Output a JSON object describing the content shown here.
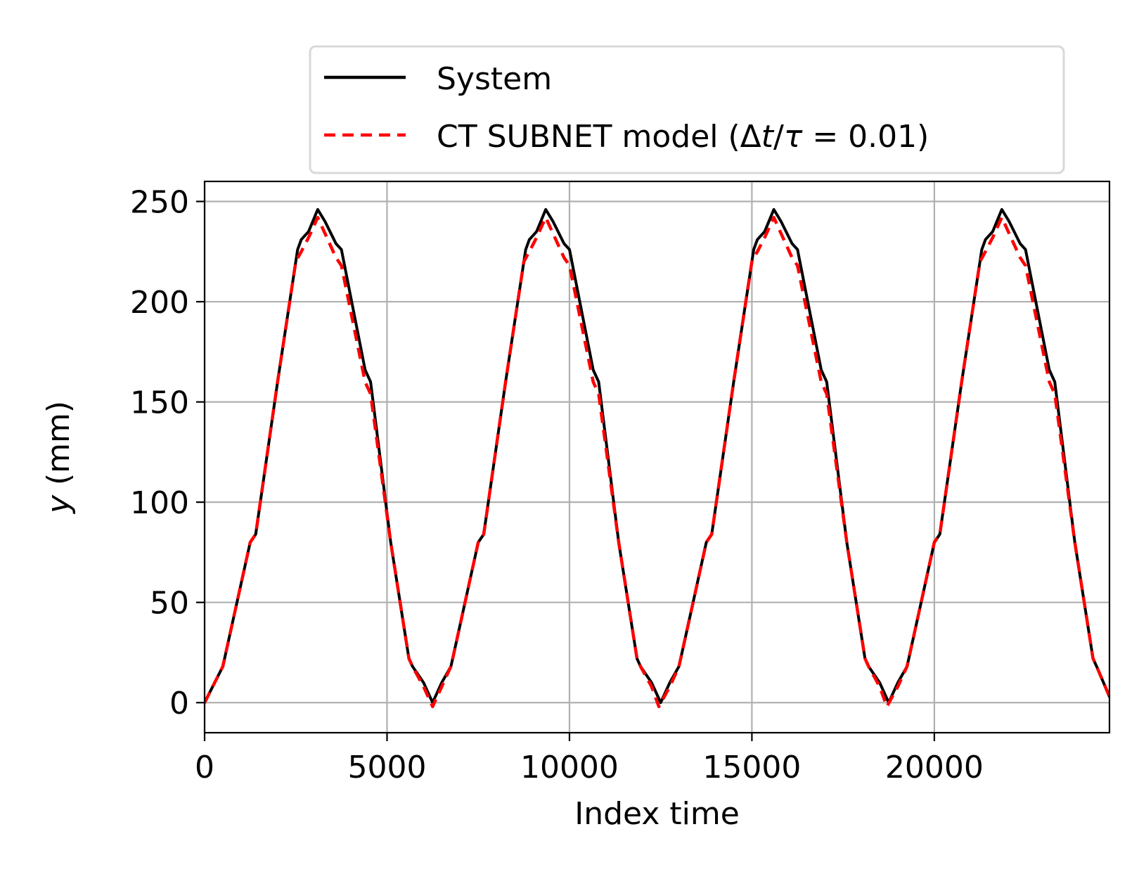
{
  "chart_data": {
    "type": "line",
    "xlabel": "Index time",
    "ylabel_var": "y",
    "ylabel_unit": " (mm)",
    "xlim": [
      0,
      24800
    ],
    "ylim": [
      -15,
      260
    ],
    "xticks": [
      0,
      5000,
      10000,
      15000,
      20000
    ],
    "yticks": [
      0,
      50,
      100,
      150,
      200,
      250
    ],
    "grid": true,
    "legend_position": "above-right",
    "colors": {
      "system": "#000000",
      "model": "#ff0000",
      "grid": "#b0b0b0"
    },
    "legend": {
      "system": "System",
      "model_prefix": "CT SUBNET model (Δ",
      "model_t": "t",
      "model_slash": "/",
      "model_tau": "τ",
      "model_suffix": " = 0.01)"
    },
    "series": [
      {
        "name": "System",
        "style": "solid",
        "x": [
          0,
          500,
          1250,
          1400,
          2000,
          2550,
          2650,
          2850,
          3100,
          3300,
          3600,
          3750,
          4400,
          4550,
          5100,
          5600,
          5700,
          6000,
          6250,
          6500,
          6750,
          6800,
          7500,
          7650,
          8250,
          8800,
          8900,
          9100,
          9350,
          9550,
          9850,
          10000,
          10650,
          10800,
          11350,
          11850,
          11950,
          12250,
          12500,
          12750,
          13000,
          13050,
          13750,
          13900,
          14500,
          15050,
          15150,
          15350,
          15600,
          15800,
          16100,
          16250,
          16900,
          17050,
          17600,
          18100,
          18200,
          18500,
          18750,
          19000,
          19250,
          19300,
          20000,
          20150,
          20750,
          21300,
          21400,
          21600,
          21850,
          22050,
          22350,
          22500,
          23150,
          23300,
          23850,
          24350,
          24450,
          24800
        ],
        "values": [
          0,
          18,
          80,
          84,
          160,
          226,
          231,
          235,
          246,
          240,
          229,
          226,
          166,
          160,
          80,
          22,
          18,
          10,
          0,
          10,
          18,
          22,
          80,
          84,
          160,
          226,
          231,
          235,
          246,
          240,
          229,
          226,
          166,
          160,
          80,
          22,
          18,
          10,
          0,
          10,
          18,
          22,
          80,
          84,
          160,
          226,
          231,
          235,
          246,
          240,
          229,
          226,
          166,
          160,
          80,
          22,
          18,
          10,
          0,
          10,
          18,
          22,
          80,
          84,
          160,
          226,
          231,
          235,
          246,
          240,
          229,
          226,
          166,
          160,
          80,
          22,
          18,
          3
        ]
      },
      {
        "name": "CT SUBNET model (Δt/τ = 0.01)",
        "style": "dashed",
        "x": [
          0,
          500,
          1250,
          1400,
          2000,
          2500,
          2650,
          2850,
          3100,
          3300,
          3600,
          3750,
          4400,
          4550,
          5100,
          5600,
          5700,
          6000,
          6250,
          6500,
          6750,
          6800,
          7500,
          7650,
          8250,
          8750,
          8900,
          9100,
          9350,
          9550,
          9850,
          10000,
          10650,
          10800,
          11350,
          11850,
          11950,
          12250,
          12450,
          12750,
          13000,
          13050,
          13750,
          13900,
          14500,
          15000,
          15150,
          15350,
          15600,
          15800,
          16100,
          16250,
          16900,
          17050,
          17600,
          18100,
          18200,
          18500,
          18700,
          19000,
          19250,
          19300,
          20000,
          20150,
          20750,
          21250,
          21400,
          21600,
          21850,
          22050,
          22350,
          22500,
          23150,
          23300,
          23850,
          24350,
          24450,
          24800
        ],
        "values": [
          0,
          18,
          80,
          84,
          160,
          220,
          225,
          232,
          242,
          234,
          222,
          218,
          160,
          154,
          80,
          22,
          18,
          8,
          -2,
          8,
          18,
          22,
          80,
          84,
          160,
          220,
          225,
          232,
          242,
          234,
          222,
          218,
          160,
          154,
          80,
          22,
          18,
          8,
          -2,
          8,
          18,
          22,
          80,
          84,
          160,
          220,
          225,
          232,
          242,
          234,
          222,
          218,
          160,
          154,
          80,
          22,
          18,
          8,
          -2,
          8,
          18,
          22,
          80,
          84,
          160,
          220,
          225,
          232,
          242,
          234,
          222,
          218,
          160,
          154,
          80,
          22,
          18,
          3
        ]
      }
    ]
  }
}
